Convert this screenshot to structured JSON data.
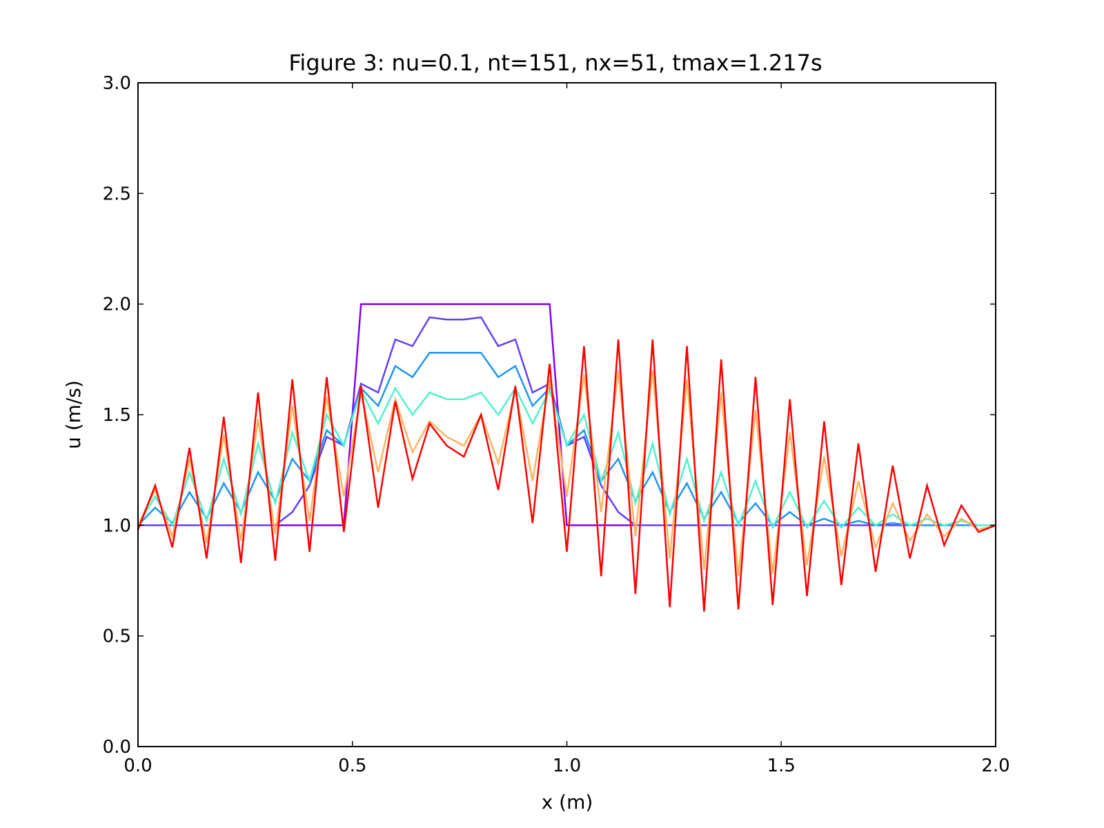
{
  "chart_data": {
    "type": "line",
    "title": "Figure 3: nu=0.1, nt=151, nx=51, tmax=1.217s",
    "xlabel": "x (m)",
    "ylabel": "u (m/s)",
    "xlim": [
      0.0,
      2.0
    ],
    "ylim": [
      0.0,
      3.0
    ],
    "xticks": [
      "0.0",
      "0.5",
      "1.0",
      "1.5",
      "2.0"
    ],
    "yticks": [
      "0.0",
      "0.5",
      "1.0",
      "1.5",
      "2.0",
      "2.5",
      "3.0"
    ],
    "grid": false,
    "legend": "none",
    "colormap": "rainbow (violet to red)",
    "x": [
      0.0,
      0.04,
      0.08,
      0.12,
      0.16,
      0.2,
      0.24,
      0.28,
      0.32,
      0.36,
      0.4,
      0.44,
      0.48,
      0.52,
      0.56,
      0.6,
      0.64,
      0.68,
      0.72,
      0.76,
      0.8,
      0.84,
      0.88,
      0.92,
      0.96,
      1.0,
      1.04,
      1.08,
      1.12,
      1.16,
      1.2,
      1.24,
      1.28,
      1.32,
      1.36,
      1.4,
      1.44,
      1.48,
      1.52,
      1.56,
      1.6,
      1.64,
      1.68,
      1.72,
      1.76,
      1.8,
      1.84,
      1.88,
      1.92,
      1.96,
      2.0
    ],
    "series": [
      {
        "color": "#8000ff",
        "values": [
          1.0,
          1.0,
          1.0,
          1.0,
          1.0,
          1.0,
          1.0,
          1.0,
          1.0,
          1.0,
          1.0,
          1.0,
          1.0,
          2.0,
          2.0,
          2.0,
          2.0,
          2.0,
          2.0,
          2.0,
          2.0,
          2.0,
          2.0,
          2.0,
          2.0,
          1.0,
          1.0,
          1.0,
          1.0,
          1.0,
          1.0,
          1.0,
          1.0,
          1.0,
          1.0,
          1.0,
          1.0,
          1.0,
          1.0,
          1.0,
          1.0,
          1.0,
          1.0,
          1.0,
          1.0,
          1.0,
          1.0,
          1.0,
          1.0,
          1.0,
          1.0
        ]
      },
      {
        "color": "#6040fa",
        "values": [
          1.0,
          1.0,
          1.0,
          1.0,
          1.0,
          1.0,
          1.0,
          1.0,
          1.0,
          1.06,
          1.18,
          1.4,
          1.36,
          1.64,
          1.6,
          1.84,
          1.81,
          1.94,
          1.93,
          1.93,
          1.94,
          1.81,
          1.84,
          1.6,
          1.64,
          1.36,
          1.4,
          1.18,
          1.06,
          1.0,
          1.0,
          1.0,
          1.0,
          1.0,
          1.0,
          1.0,
          1.0,
          1.0,
          1.0,
          1.0,
          1.0,
          1.0,
          1.0,
          1.0,
          1.0,
          1.0,
          1.0,
          1.0,
          1.0,
          1.0,
          1.0
        ]
      },
      {
        "color": "#1996f3",
        "values": [
          1.0,
          1.08,
          1.01,
          1.15,
          1.03,
          1.19,
          1.06,
          1.24,
          1.11,
          1.3,
          1.2,
          1.43,
          1.36,
          1.62,
          1.54,
          1.72,
          1.67,
          1.78,
          1.78,
          1.78,
          1.78,
          1.67,
          1.72,
          1.54,
          1.62,
          1.36,
          1.43,
          1.2,
          1.3,
          1.11,
          1.24,
          1.06,
          1.19,
          1.03,
          1.15,
          1.01,
          1.1,
          1.0,
          1.06,
          1.0,
          1.03,
          1.0,
          1.02,
          1.0,
          1.01,
          1.0,
          1.0,
          1.0,
          1.0,
          1.0,
          1.0
        ]
      },
      {
        "color": "#4cf2ce",
        "values": [
          1.0,
          1.13,
          1.0,
          1.24,
          1.02,
          1.3,
          1.05,
          1.37,
          1.1,
          1.42,
          1.2,
          1.5,
          1.36,
          1.61,
          1.46,
          1.62,
          1.5,
          1.6,
          1.57,
          1.57,
          1.6,
          1.5,
          1.62,
          1.46,
          1.61,
          1.36,
          1.5,
          1.2,
          1.42,
          1.1,
          1.37,
          1.05,
          1.3,
          1.02,
          1.24,
          1.0,
          1.2,
          0.99,
          1.15,
          0.99,
          1.11,
          0.99,
          1.08,
          1.0,
          1.05,
          1.0,
          1.03,
          1.0,
          1.02,
          1.0,
          1.0
        ]
      },
      {
        "color": "#ffb360",
        "values": [
          1.0,
          1.16,
          0.95,
          1.3,
          0.92,
          1.41,
          0.93,
          1.48,
          0.96,
          1.54,
          1.02,
          1.58,
          1.13,
          1.6,
          1.24,
          1.57,
          1.33,
          1.47,
          1.4,
          1.36,
          1.5,
          1.28,
          1.61,
          1.2,
          1.66,
          1.13,
          1.68,
          1.06,
          1.7,
          0.95,
          1.7,
          0.85,
          1.66,
          0.8,
          1.6,
          0.77,
          1.52,
          0.78,
          1.42,
          0.82,
          1.31,
          0.86,
          1.2,
          0.9,
          1.1,
          0.93,
          1.05,
          0.95,
          1.03,
          0.98,
          1.0
        ]
      },
      {
        "color": "#ff0000",
        "values": [
          0.98,
          1.18,
          0.9,
          1.35,
          0.85,
          1.49,
          0.83,
          1.6,
          0.84,
          1.66,
          0.88,
          1.67,
          0.97,
          1.63,
          1.08,
          1.56,
          1.21,
          1.46,
          1.36,
          1.31,
          1.5,
          1.16,
          1.63,
          1.01,
          1.73,
          0.88,
          1.81,
          0.77,
          1.84,
          0.69,
          1.84,
          0.63,
          1.81,
          0.61,
          1.75,
          0.62,
          1.67,
          0.64,
          1.57,
          0.68,
          1.47,
          0.73,
          1.37,
          0.79,
          1.27,
          0.85,
          1.18,
          0.91,
          1.09,
          0.97,
          1.0
        ]
      }
    ]
  }
}
